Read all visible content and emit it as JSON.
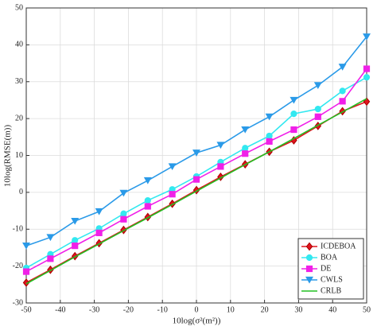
{
  "chart_data": {
    "type": "line",
    "x_label": "10log(σ²(m²))",
    "y_label": "10log(RMSE(m))",
    "x": [
      -50,
      -42.9,
      -35.7,
      -28.6,
      -21.4,
      -14.3,
      -7.1,
      0,
      7.1,
      14.3,
      21.4,
      28.6,
      35.7,
      42.9,
      50
    ],
    "series": [
      {
        "name": "ICDEBOA",
        "color": "#e0141e",
        "marker": "diamond",
        "values": [
          -24.5,
          -21.0,
          -17.3,
          -13.8,
          -10.2,
          -6.7,
          -3.1,
          0.6,
          4.2,
          7.6,
          11.0,
          14.1,
          18.0,
          22.0,
          24.6
        ]
      },
      {
        "name": "BOA",
        "color": "#33e8f0",
        "marker": "circle",
        "values": [
          -20.5,
          -16.8,
          -13.0,
          -9.8,
          -5.8,
          -2.2,
          0.8,
          4.3,
          8.2,
          12.0,
          15.3,
          21.3,
          22.6,
          27.5,
          31.2
        ]
      },
      {
        "name": "DE",
        "color": "#f020e8",
        "marker": "square",
        "values": [
          -21.5,
          -18.0,
          -14.5,
          -11.0,
          -7.3,
          -3.8,
          -0.5,
          3.5,
          7.0,
          10.5,
          13.8,
          17.0,
          20.5,
          24.7,
          33.5
        ]
      },
      {
        "name": "CWLS",
        "color": "#2a9ae8",
        "marker": "triangle-down",
        "values": [
          -14.5,
          -12.2,
          -7.8,
          -5.2,
          -0.2,
          3.2,
          7.0,
          10.7,
          12.8,
          17.0,
          20.5,
          25.0,
          29.0,
          34.0,
          42.2
        ]
      },
      {
        "name": "CRLB",
        "color": "#22c022",
        "marker": "none",
        "values": [
          -24.8,
          -21.2,
          -17.5,
          -14.0,
          -10.4,
          -6.9,
          -3.3,
          0.3,
          3.9,
          7.5,
          11.0,
          14.6,
          18.2,
          21.8,
          25.4
        ]
      }
    ],
    "xlim": [
      -50,
      50
    ],
    "xticks": [
      -50,
      -40,
      -30,
      -20,
      -10,
      0,
      10,
      20,
      30,
      40,
      50
    ],
    "ylim": [
      -30,
      50
    ],
    "yticks": [
      -30,
      -20,
      -10,
      0,
      10,
      20,
      30,
      40,
      50
    ],
    "grid": true,
    "legend": "bottom-right"
  }
}
